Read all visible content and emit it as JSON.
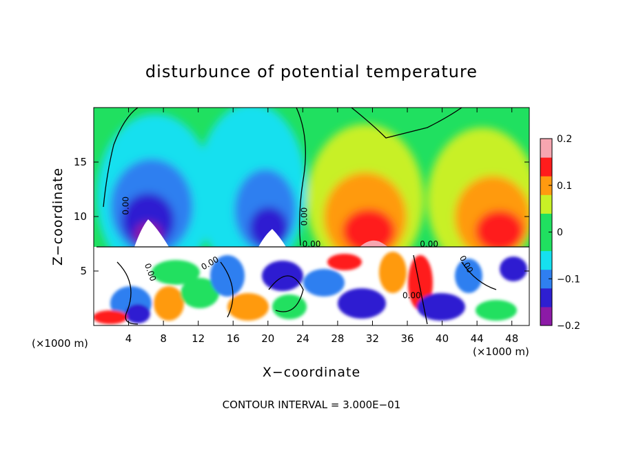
{
  "chart_data": {
    "type": "heatmap",
    "title": "disturbunce of potential temperature",
    "xlabel": "X−coordinate",
    "ylabel": "Z−coordinate",
    "x_unit": "(×1000 m)",
    "x_unit_right": "(×1000 m)",
    "xlim": [
      0,
      50
    ],
    "ylim": [
      0,
      20
    ],
    "x_ticks": [
      4,
      8,
      12,
      16,
      20,
      24,
      28,
      32,
      36,
      40,
      44,
      48
    ],
    "y_ticks": [
      5,
      10,
      15
    ],
    "colorbar": {
      "range": [
        -0.2,
        0.2
      ],
      "tick_values": [
        0.2,
        0.1,
        0,
        -0.1,
        -0.2
      ],
      "tick_labels": [
        "0.2",
        "0.1",
        "0",
        "−0.1",
        "−0.2"
      ]
    },
    "contour_labels": [
      "0.00",
      "0.00",
      "0.00",
      "0.00",
      "0.00",
      "0.00",
      "0.00",
      "0.00"
    ],
    "contour_interval_text": "CONTOUR INTERVAL = 3.000E−01",
    "colors": {
      "c_m020": "#8c1aa6",
      "c_m015": "#2e1fd1",
      "c_m010": "#2f7ff0",
      "c_m005": "#16e0ef",
      "c_000": "#20e060",
      "c_005": "#c8f026",
      "c_010": "#ff9a10",
      "c_015": "#ff1c1c",
      "c_020": "#f7a6b0"
    }
  }
}
